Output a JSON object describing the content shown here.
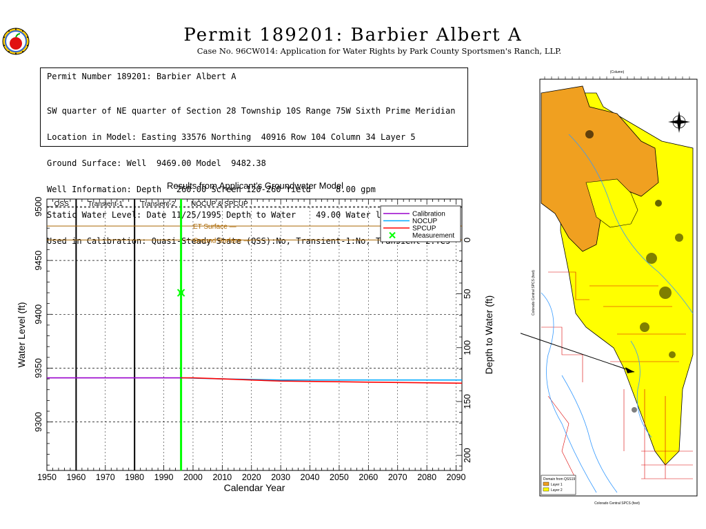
{
  "header": {
    "title": "Permit 189201:  Barbier Albert A",
    "subtitle": "Case No. 96CW014: Application for Water Rights by Park County Sportsmen's Ranch, LLP."
  },
  "info": {
    "heading": "Permit Number 189201: Barbier Albert A",
    "lines": [
      "SW quarter of NE quarter of Section 28 Township 10S Range 75W Sixth Prime Meridian",
      "Location in Model: Easting 33576 Northing  40916 Row 104 Column 34 Layer 5",
      "Ground Surface: Well  9469.00 Model  9482.38",
      "Well Information: Depth   260.00 Screen 120-260 Yield     8.00 gpm",
      "Static Water Level: Date 11/25/1995 Depth to Water    49.00 Water level  9420.00",
      "Used in Calibration: Quasi-Steady State (QSS):No, Transient-1:No, Transient-2:Yes"
    ]
  },
  "chart_data": {
    "type": "line",
    "title": "Results from Applicant's Groundwater Model",
    "xlabel": "Calendar Year",
    "ylabel": "Water Level (ft)",
    "ylabel_right": "Depth to Water (ft)",
    "xlim": [
      1950,
      2092
    ],
    "ylim": [
      9255,
      9507
    ],
    "x_ticks": [
      1950,
      1960,
      1970,
      1980,
      1990,
      2000,
      2010,
      2020,
      2030,
      2040,
      2050,
      2060,
      2070,
      2080,
      2090
    ],
    "y_ticks": [
      9300,
      9350,
      9400,
      9450,
      9500
    ],
    "right_ticks": [
      0,
      50,
      100,
      150,
      200
    ],
    "ground_surface": 9469,
    "et_surface": 9482,
    "periods": [
      {
        "label": "QSS",
        "start": 1950,
        "end": 1960
      },
      {
        "label": "Transient-1",
        "start": 1960,
        "end": 1980
      },
      {
        "label": "Transient-2",
        "start": 1980,
        "end": 1996
      },
      {
        "label": "NOCUP & SPCUP",
        "start": 1996,
        "end": 2092
      }
    ],
    "series": [
      {
        "name": "Calibration",
        "color": "#9900cc",
        "x": [
          1950,
          1996
        ],
        "y": [
          9341,
          9341
        ]
      },
      {
        "name": "NOCUP",
        "color": "#00aaff",
        "x": [
          1996,
          2010,
          2030,
          2060,
          2092
        ],
        "y": [
          9341,
          9340,
          9339,
          9339,
          9339
        ]
      },
      {
        "name": "SPCUP",
        "color": "#ff0000",
        "x": [
          1996,
          2000,
          2010,
          2030,
          2060,
          2092
        ],
        "y": [
          9341,
          9341,
          9340,
          9338,
          9337,
          9336
        ]
      }
    ],
    "measurement": {
      "name": "Measurement",
      "color": "#00ff00",
      "x": 1995.9,
      "y": 9420
    },
    "surface_labels": {
      "et": "ET Surface",
      "ground": "Ground Surface"
    }
  },
  "map": {
    "title": "Domain from QSS19",
    "legend": [
      "Layer 1",
      "Layer 2"
    ],
    "column_label": "(Column)",
    "x_axis_label": "Colorado Central SPCS (feet)",
    "y_axis_label": "Colorado Central SPCS (feet)"
  },
  "colors": {
    "layer1": "#f0a020",
    "layer2": "#ffff00",
    "grid": "#000000"
  }
}
